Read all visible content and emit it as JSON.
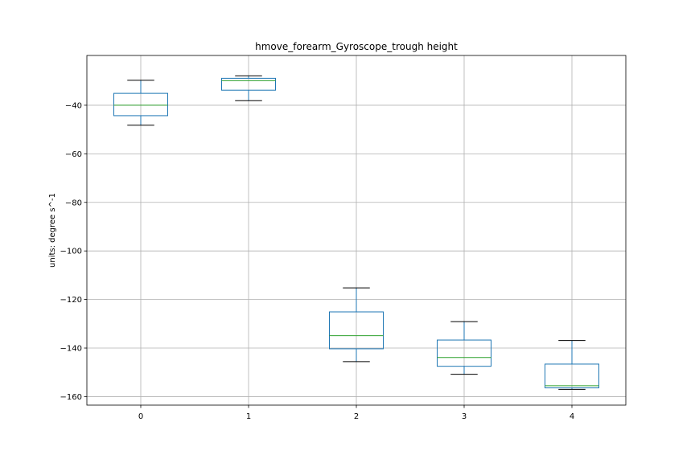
{
  "chart_data": {
    "type": "box",
    "title": "hmove_forearm_Gyroscope_trough height",
    "xlabel": "",
    "ylabel": "units: degree s^-1",
    "categories": [
      "0",
      "1",
      "2",
      "3",
      "4"
    ],
    "boxes": [
      {
        "whisker_low": -48.2,
        "q1": -44.3,
        "median": -40.0,
        "q3": -35.1,
        "whisker_high": -29.7
      },
      {
        "whisker_low": -38.1,
        "q1": -33.8,
        "median": -29.9,
        "q3": -28.9,
        "whisker_high": -27.9
      },
      {
        "whisker_low": -145.6,
        "q1": -140.3,
        "median": -134.9,
        "q3": -125.1,
        "whisker_high": -115.2
      },
      {
        "whisker_low": -150.8,
        "q1": -147.5,
        "median": -143.9,
        "q3": -136.7,
        "whisker_high": -129.1
      },
      {
        "whisker_low": -157.0,
        "q1": -156.4,
        "median": -155.5,
        "q3": -146.6,
        "whisker_high": -136.9
      }
    ],
    "yticks": [
      -40,
      -60,
      -80,
      -100,
      -120,
      -140,
      -160
    ],
    "ylim": [
      -163.5,
      -19.5
    ],
    "grid": true,
    "box_color": "#1f77b4",
    "median_color": "#2ca02c",
    "whisker_cap_color": "#000000"
  }
}
